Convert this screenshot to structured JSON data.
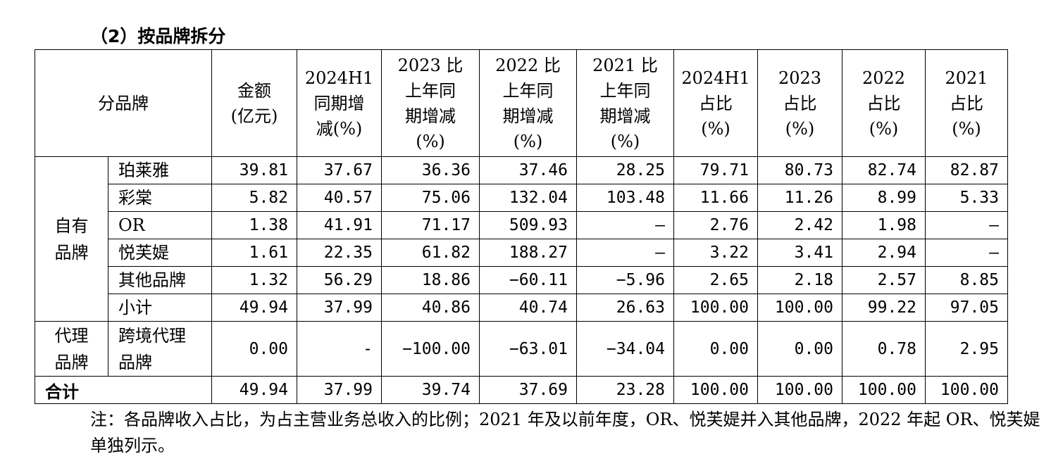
{
  "heading": "（2）按品牌拆分",
  "table": {
    "header_first": [
      "分品牌"
    ],
    "columns": [
      [
        "金额",
        "(亿元)"
      ],
      [
        "2024H1",
        "同期增",
        "减(%)"
      ],
      [
        "2023 比",
        "上年同",
        "期增减",
        "(%)"
      ],
      [
        "2022 比",
        "上年同",
        "期增减",
        "(%)"
      ],
      [
        "2021 比",
        "上年同",
        "期增减",
        "(%)"
      ],
      [
        "2024H1",
        "占比",
        "(%)"
      ],
      [
        "2023",
        "占比",
        "(%)"
      ],
      [
        "2022",
        "占比",
        "(%)"
      ],
      [
        "2021",
        "占比",
        "(%)"
      ]
    ],
    "groups": [
      {
        "label": [
          "自有",
          "品牌"
        ],
        "rows": [
          {
            "brand": [
              "珀莱雅"
            ],
            "values": [
              "39.81",
              "37.67",
              "36.36",
              "37.46",
              "28.25",
              "79.71",
              "80.73",
              "82.74",
              "82.87"
            ]
          },
          {
            "brand": [
              "彩棠"
            ],
            "values": [
              "5.82",
              "40.57",
              "75.06",
              "132.04",
              "103.48",
              "11.66",
              "11.26",
              "8.99",
              "5.33"
            ]
          },
          {
            "brand": [
              "OR"
            ],
            "values": [
              "1.38",
              "41.91",
              "71.17",
              "509.93",
              "–",
              "2.76",
              "2.42",
              "1.98",
              "–"
            ]
          },
          {
            "brand": [
              "悦芙媞"
            ],
            "values": [
              "1.61",
              "22.35",
              "61.82",
              "188.27",
              "–",
              "3.22",
              "3.41",
              "2.94",
              "–"
            ]
          },
          {
            "brand": [
              "其他品牌"
            ],
            "values": [
              "1.32",
              "56.29",
              "18.86",
              "−60.11",
              "−5.96",
              "2.65",
              "2.18",
              "2.57",
              "8.85"
            ]
          },
          {
            "brand": [
              "小计"
            ],
            "values": [
              "49.94",
              "37.99",
              "40.86",
              "40.74",
              "26.63",
              "100.00",
              "100.00",
              "99.22",
              "97.05"
            ]
          }
        ]
      },
      {
        "label": [
          "代理",
          "品牌"
        ],
        "rows": [
          {
            "brand": [
              "跨境代理",
              "品牌"
            ],
            "values": [
              "0.00",
              "-",
              "−100.00",
              "−63.01",
              "−34.04",
              "0.00",
              "0.00",
              "0.78",
              "2.95"
            ]
          }
        ]
      }
    ],
    "total": {
      "label": "合计",
      "values": [
        "49.94",
        "37.99",
        "39.74",
        "37.69",
        "23.28",
        "100.00",
        "100.00",
        "100.00",
        "100.00"
      ]
    }
  },
  "note": [
    "注：各品牌收入占比，为占主营业务总收入的比例；2021 年及以前年度，OR、悦芙媞并入其他",
    "品牌，2022 年起 OR、悦芙媞单独列示。"
  ]
}
